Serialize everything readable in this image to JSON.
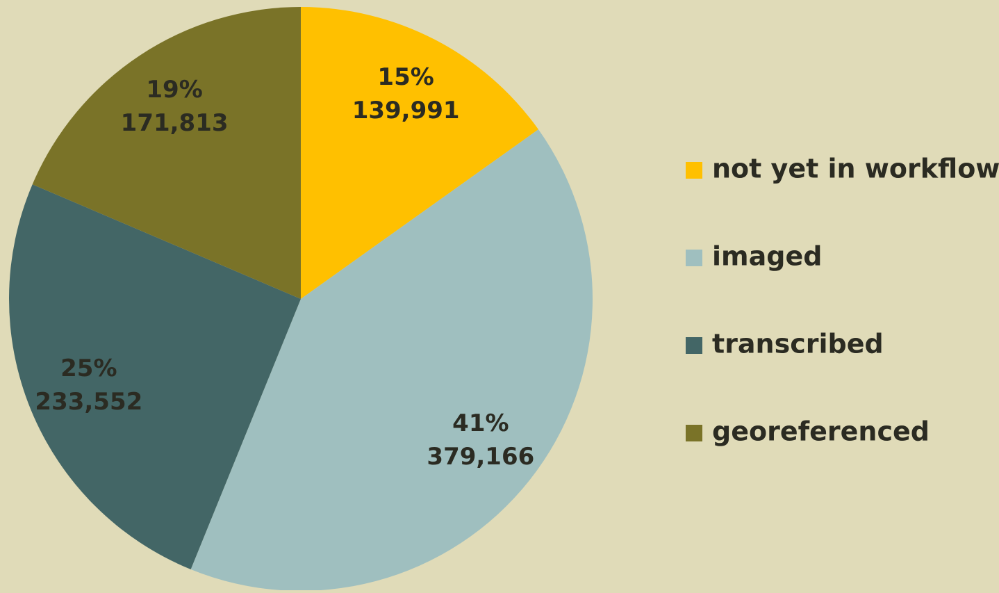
{
  "chart_data": {
    "type": "pie",
    "categories": [
      "not yet in workflow",
      "imaged",
      "transcribed",
      "georeferenced"
    ],
    "values": [
      139991,
      379166,
      233552,
      171813
    ],
    "value_labels": [
      "139,991",
      "379,166",
      "233,552",
      "171,813"
    ],
    "percent_labels": [
      "15%",
      "41%",
      "25%",
      "19%"
    ],
    "colors": [
      "#ffc000",
      "#9fbfbf",
      "#436666",
      "#7a7328"
    ],
    "legend": "right"
  }
}
